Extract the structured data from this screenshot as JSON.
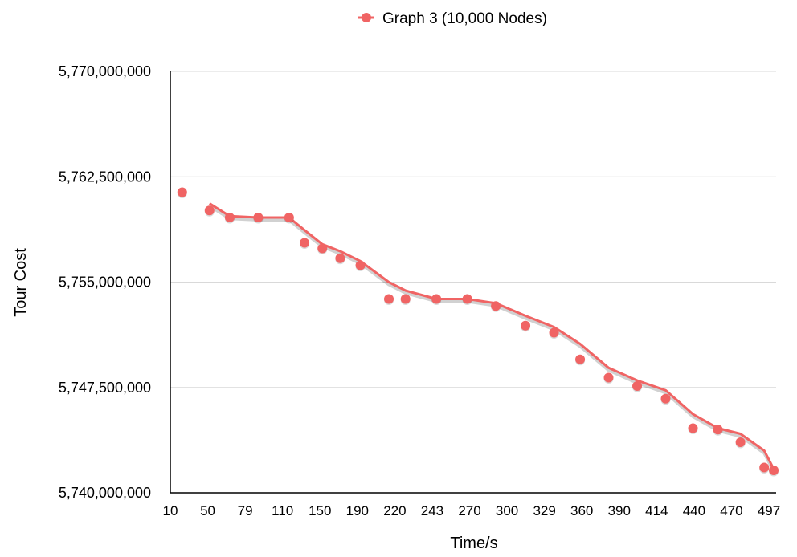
{
  "chart_data": {
    "type": "scatter",
    "legend": {
      "label": "Graph 3 (10,000 Nodes)",
      "placement": "top-center"
    },
    "xlabel": "Time/s",
    "ylabel": "Tour Cost",
    "x_tick_labels": [
      "10",
      "50",
      "79",
      "110",
      "150",
      "190",
      "220",
      "243",
      "270",
      "300",
      "329",
      "360",
      "390",
      "414",
      "440",
      "470",
      "497"
    ],
    "y_tick_labels": [
      "5,770,000,000",
      "5,762,500,000",
      "5,755,000,000",
      "5,747,500,000",
      "5,740,000,000"
    ],
    "ylim": [
      5740000000,
      5770000000
    ],
    "grid": true,
    "series": [
      {
        "name": "Graph 3 (10,000 Nodes)",
        "color": "#f06464",
        "points": [
          [
            20,
            5761400000
          ],
          [
            43,
            5760100000
          ],
          [
            60,
            5759600000
          ],
          [
            84,
            5759600000
          ],
          [
            110,
            5759600000
          ],
          [
            123,
            5757800000
          ],
          [
            138,
            5757400000
          ],
          [
            153,
            5756700000
          ],
          [
            170,
            5756200000
          ],
          [
            194,
            5753800000
          ],
          [
            208,
            5753800000
          ],
          [
            234,
            5753800000
          ],
          [
            260,
            5753800000
          ],
          [
            284,
            5753300000
          ],
          [
            309,
            5751900000
          ],
          [
            333,
            5751400000
          ],
          [
            355,
            5749500000
          ],
          [
            379,
            5748200000
          ],
          [
            403,
            5747600000
          ],
          [
            427,
            5746700000
          ],
          [
            450,
            5744600000
          ],
          [
            471,
            5744500000
          ],
          [
            490,
            5743600000
          ],
          [
            510,
            5741800000
          ],
          [
            518,
            5741600000
          ]
        ],
        "trendline": [
          [
            43,
            5760600000
          ],
          [
            60,
            5759700000
          ],
          [
            84,
            5759600000
          ],
          [
            110,
            5759600000
          ],
          [
            123,
            5758700000
          ],
          [
            138,
            5757700000
          ],
          [
            153,
            5757200000
          ],
          [
            170,
            5756500000
          ],
          [
            194,
            5755000000
          ],
          [
            208,
            5754400000
          ],
          [
            234,
            5753800000
          ],
          [
            260,
            5753800000
          ],
          [
            284,
            5753500000
          ],
          [
            309,
            5752600000
          ],
          [
            333,
            5751800000
          ],
          [
            355,
            5750600000
          ],
          [
            379,
            5748900000
          ],
          [
            403,
            5748000000
          ],
          [
            427,
            5747300000
          ],
          [
            450,
            5745600000
          ],
          [
            471,
            5744600000
          ],
          [
            490,
            5744200000
          ],
          [
            510,
            5743000000
          ],
          [
            518,
            5741700000
          ]
        ]
      }
    ]
  }
}
